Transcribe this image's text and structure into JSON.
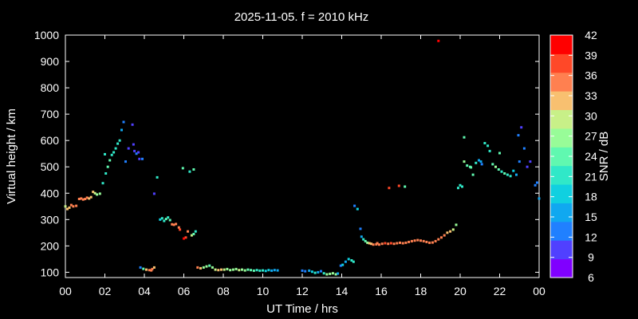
{
  "chart_data": {
    "type": "scatter",
    "title": "2025-11-05. f = 2010 kHz",
    "xlabel": "UT Time / hrs",
    "ylabel": "Virtual height / km",
    "xlim": [
      0,
      24
    ],
    "ylim": [
      80,
      1000
    ],
    "xticks": [
      "00",
      "02",
      "04",
      "06",
      "08",
      "10",
      "12",
      "14",
      "16",
      "18",
      "20",
      "22",
      "00"
    ],
    "yticks": [
      100,
      200,
      300,
      400,
      500,
      600,
      700,
      800,
      900,
      1000
    ],
    "grid": false,
    "colorbar": {
      "label": "SNR / dB",
      "min": 6,
      "max": 42,
      "ticks": [
        6,
        9,
        12,
        15,
        18,
        21,
        24,
        27,
        30,
        33,
        36,
        39,
        42
      ],
      "colors": [
        "#8000ff",
        "#5040ff",
        "#2080ff",
        "#10a8f0",
        "#10d0e0",
        "#30e8c8",
        "#60f8b0",
        "#98fc98",
        "#c8f088",
        "#f8c070",
        "#ff8050",
        "#ff4828",
        "#ff0000"
      ]
    },
    "points": [
      [
        0.0,
        350,
        30
      ],
      [
        0.1,
        340,
        33
      ],
      [
        0.2,
        345,
        33
      ],
      [
        0.3,
        355,
        34
      ],
      [
        0.4,
        350,
        35
      ],
      [
        0.55,
        352,
        34
      ],
      [
        0.7,
        378,
        35
      ],
      [
        0.8,
        380,
        36
      ],
      [
        0.9,
        376,
        36
      ],
      [
        1.0,
        378,
        35
      ],
      [
        1.1,
        383,
        34
      ],
      [
        1.2,
        380,
        33
      ],
      [
        1.3,
        385,
        32
      ],
      [
        1.4,
        405,
        31
      ],
      [
        1.5,
        400,
        30
      ],
      [
        1.6,
        395,
        28
      ],
      [
        1.75,
        398,
        26
      ],
      [
        1.9,
        438,
        22
      ],
      [
        2.0,
        548,
        21
      ],
      [
        2.05,
        475,
        22
      ],
      [
        2.15,
        500,
        23
      ],
      [
        2.25,
        525,
        24
      ],
      [
        2.35,
        545,
        22
      ],
      [
        2.45,
        555,
        21
      ],
      [
        2.55,
        570,
        20
      ],
      [
        2.65,
        588,
        22
      ],
      [
        2.75,
        600,
        21
      ],
      [
        2.85,
        640,
        17
      ],
      [
        2.95,
        670,
        12
      ],
      [
        3.05,
        520,
        12
      ],
      [
        3.2,
        570,
        11
      ],
      [
        3.4,
        660,
        10
      ],
      [
        3.45,
        585,
        10
      ],
      [
        3.5,
        560,
        11
      ],
      [
        3.6,
        550,
        12
      ],
      [
        3.75,
        530,
        11
      ],
      [
        3.7,
        555,
        10
      ],
      [
        3.9,
        530,
        12
      ],
      [
        3.8,
        118,
        12
      ],
      [
        3.95,
        113,
        25
      ],
      [
        4.1,
        110,
        33
      ],
      [
        4.25,
        108,
        35
      ],
      [
        4.4,
        112,
        34
      ],
      [
        4.5,
        118,
        33
      ],
      [
        4.5,
        398,
        11
      ],
      [
        4.65,
        460,
        20
      ],
      [
        4.8,
        300,
        19
      ],
      [
        4.9,
        305,
        20
      ],
      [
        5.0,
        295,
        22
      ],
      [
        5.1,
        302,
        23
      ],
      [
        5.2,
        308,
        22
      ],
      [
        5.3,
        298,
        24
      ],
      [
        5.4,
        282,
        34
      ],
      [
        5.5,
        280,
        36
      ],
      [
        5.6,
        283,
        35
      ],
      [
        5.75,
        270,
        36
      ],
      [
        5.8,
        262,
        37
      ],
      [
        5.95,
        495,
        24
      ],
      [
        6.0,
        228,
        40
      ],
      [
        6.1,
        232,
        38
      ],
      [
        6.2,
        255,
        36
      ],
      [
        6.3,
        482,
        21
      ],
      [
        6.4,
        240,
        30
      ],
      [
        6.5,
        245,
        25
      ],
      [
        6.5,
        490,
        24
      ],
      [
        6.6,
        255,
        22
      ],
      [
        6.7,
        118,
        34
      ],
      [
        6.85,
        115,
        32
      ],
      [
        7.0,
        118,
        28
      ],
      [
        7.15,
        122,
        26
      ],
      [
        7.3,
        125,
        25
      ],
      [
        7.45,
        118,
        27
      ],
      [
        7.6,
        110,
        30
      ],
      [
        7.75,
        108,
        31
      ],
      [
        7.9,
        110,
        32
      ],
      [
        8.05,
        110,
        30
      ],
      [
        8.2,
        112,
        28
      ],
      [
        8.35,
        108,
        26
      ],
      [
        8.5,
        110,
        27
      ],
      [
        8.65,
        112,
        28
      ],
      [
        8.8,
        108,
        29
      ],
      [
        8.95,
        110,
        27
      ],
      [
        9.1,
        107,
        26
      ],
      [
        9.25,
        110,
        25
      ],
      [
        9.4,
        108,
        24
      ],
      [
        9.55,
        106,
        23
      ],
      [
        9.7,
        108,
        22
      ],
      [
        9.85,
        106,
        21
      ],
      [
        10.0,
        107,
        20
      ],
      [
        10.15,
        105,
        19
      ],
      [
        10.3,
        108,
        18
      ],
      [
        10.45,
        106,
        17
      ],
      [
        10.6,
        108,
        16
      ],
      [
        10.75,
        107,
        15
      ],
      [
        12.0,
        106,
        13
      ],
      [
        12.15,
        104,
        14
      ],
      [
        12.35,
        106,
        16
      ],
      [
        12.5,
        102,
        18
      ],
      [
        12.65,
        98,
        20
      ],
      [
        12.8,
        100,
        17
      ],
      [
        12.95,
        104,
        14
      ],
      [
        13.1,
        96,
        22
      ],
      [
        13.25,
        92,
        26
      ],
      [
        13.4,
        94,
        28
      ],
      [
        13.55,
        96,
        27
      ],
      [
        13.7,
        92,
        26
      ],
      [
        13.8,
        95,
        16
      ],
      [
        13.95,
        125,
        14
      ],
      [
        14.05,
        128,
        18
      ],
      [
        14.2,
        140,
        16
      ],
      [
        14.35,
        150,
        18
      ],
      [
        14.5,
        145,
        22
      ],
      [
        14.6,
        140,
        21
      ],
      [
        14.65,
        352,
        13
      ],
      [
        14.8,
        340,
        19
      ],
      [
        14.95,
        265,
        13
      ],
      [
        15.0,
        235,
        17
      ],
      [
        15.1,
        225,
        20
      ],
      [
        15.2,
        218,
        24
      ],
      [
        15.3,
        212,
        28
      ],
      [
        15.4,
        210,
        31
      ],
      [
        15.5,
        208,
        33
      ],
      [
        15.6,
        205,
        34
      ],
      [
        15.75,
        206,
        35
      ],
      [
        15.9,
        205,
        36
      ],
      [
        16.05,
        208,
        36
      ],
      [
        16.2,
        210,
        37
      ],
      [
        16.35,
        208,
        36
      ],
      [
        16.5,
        210,
        37
      ],
      [
        16.65,
        208,
        36
      ],
      [
        16.8,
        210,
        36
      ],
      [
        16.95,
        212,
        36
      ],
      [
        17.1,
        210,
        36
      ],
      [
        17.25,
        212,
        35
      ],
      [
        17.4,
        215,
        35
      ],
      [
        17.55,
        218,
        35
      ],
      [
        17.7,
        220,
        35
      ],
      [
        17.85,
        222,
        35
      ],
      [
        18.0,
        220,
        35
      ],
      [
        18.15,
        218,
        35
      ],
      [
        18.3,
        215,
        36
      ],
      [
        18.45,
        212,
        36
      ],
      [
        18.6,
        213,
        36
      ],
      [
        18.75,
        218,
        36
      ],
      [
        18.9,
        225,
        36
      ],
      [
        19.05,
        232,
        35
      ],
      [
        19.2,
        240,
        34
      ],
      [
        19.35,
        250,
        32
      ],
      [
        19.5,
        255,
        31
      ],
      [
        19.65,
        262,
        30
      ],
      [
        19.8,
        280,
        28
      ],
      [
        19.9,
        420,
        21
      ],
      [
        20.0,
        430,
        21
      ],
      [
        20.1,
        425,
        20
      ],
      [
        20.2,
        520,
        28
      ],
      [
        20.35,
        505,
        25
      ],
      [
        20.5,
        500,
        24
      ],
      [
        20.65,
        470,
        23
      ],
      [
        20.8,
        515,
        21
      ],
      [
        20.95,
        525,
        17
      ],
      [
        21.1,
        510,
        14
      ],
      [
        21.25,
        590,
        21
      ],
      [
        21.4,
        580,
        22
      ],
      [
        21.5,
        560,
        20
      ],
      [
        21.65,
        510,
        24
      ],
      [
        21.8,
        500,
        26
      ],
      [
        21.95,
        490,
        23
      ],
      [
        22.1,
        482,
        22
      ],
      [
        22.25,
        475,
        23
      ],
      [
        22.4,
        470,
        21
      ],
      [
        22.55,
        465,
        20
      ],
      [
        22.7,
        485,
        18
      ],
      [
        22.85,
        470,
        17
      ],
      [
        22.95,
        620,
        12
      ],
      [
        23.1,
        650,
        11
      ],
      [
        23.25,
        570,
        12
      ],
      [
        23.4,
        500,
        11
      ],
      [
        23.55,
        520,
        10
      ],
      [
        23.8,
        430,
        12
      ],
      [
        23.9,
        440,
        13
      ],
      [
        24.0,
        380,
        15
      ],
      [
        20.2,
        612,
        25
      ],
      [
        16.4,
        420,
        38
      ],
      [
        16.9,
        428,
        37
      ],
      [
        17.2,
        425,
        25
      ],
      [
        18.9,
        978,
        40
      ],
      [
        15.8,
        210,
        34
      ],
      [
        22.0,
        552,
        23
      ],
      [
        20.55,
        498,
        24
      ],
      [
        21.05,
        520,
        15
      ],
      [
        23.0,
        520,
        13
      ],
      [
        4.35,
        107,
        34
      ]
    ]
  }
}
